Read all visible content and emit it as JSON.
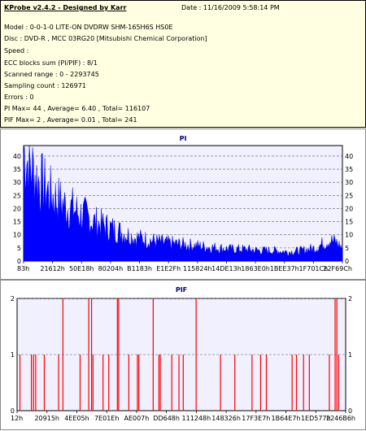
{
  "app": {
    "title": "KProbe v2.4.2 - Designed by Karr",
    "date": "Date : 11/16/2009 5:58:14 PM",
    "lines": [
      "Model : 0-0-1-0 LITE-ON DVDRW SHM-165H6S HS0E",
      "Disc : DVD-R , MCC 03RG20  [Mitsubishi Chemical Corporation]",
      "Speed :",
      "ECC blocks sum (PI/PIF) : 8/1",
      "Scanned range : 0 - 2293745",
      "Sampling count : 126971",
      "Errors : 0",
      "PI Max= 44 , Average= 6.40 , Total= 116107",
      "PIF Max= 2 , Average= 0.01 , Total= 241"
    ]
  },
  "colors": {
    "pi_fill": "#0000ff",
    "pif_line": "#ff0000",
    "plot_bg": "#f0f0ff",
    "grid": "#606060",
    "info_bg": "#ffffe1"
  },
  "chart_data": [
    {
      "type": "area",
      "title": "PI",
      "ylim": [
        0,
        44
      ],
      "yticks": [
        0,
        5,
        10,
        15,
        20,
        25,
        30,
        35,
        40
      ],
      "xlim": [
        0,
        2293745
      ],
      "xticks": [
        "83h",
        "21612h",
        "50E18h",
        "80204h",
        "B1183h",
        "E1E2Fh",
        "115824h",
        "14DE13h",
        "1863E0h",
        "1BEE37h",
        "1F701Ch",
        "22F69Ch"
      ],
      "grid": "dashed horizontal",
      "profile": [
        [
          0,
          42
        ],
        [
          30000,
          38
        ],
        [
          60000,
          35
        ],
        [
          100000,
          31
        ],
        [
          150000,
          28
        ],
        [
          200000,
          25
        ],
        [
          250000,
          23
        ],
        [
          300000,
          21
        ],
        [
          350000,
          20
        ],
        [
          400000,
          18
        ],
        [
          450000,
          17
        ],
        [
          500000,
          15
        ],
        [
          550000,
          14
        ],
        [
          600000,
          13
        ],
        [
          650000,
          12
        ],
        [
          700000,
          11
        ],
        [
          750000,
          10
        ],
        [
          800000,
          9
        ],
        [
          900000,
          8
        ],
        [
          1000000,
          7
        ],
        [
          1100000,
          6.5
        ],
        [
          1200000,
          6
        ],
        [
          1300000,
          5.5
        ],
        [
          1400000,
          5
        ],
        [
          1500000,
          4.5
        ],
        [
          1600000,
          4.5
        ],
        [
          1700000,
          4
        ],
        [
          1800000,
          4
        ],
        [
          1900000,
          3.5
        ],
        [
          2000000,
          4
        ],
        [
          2100000,
          5
        ],
        [
          2200000,
          8
        ],
        [
          2250000,
          7
        ],
        [
          2293745,
          5
        ]
      ]
    },
    {
      "type": "bar",
      "title": "PIF",
      "ylim": [
        0,
        2
      ],
      "yticks": [
        0,
        1,
        2
      ],
      "xlim": [
        0,
        2293745
      ],
      "xticks": [
        "12h",
        "20915h",
        "4EE05h",
        "7E01Eh",
        "AE007h",
        "DD648h",
        "111248h",
        "148326h",
        "17F3E7h",
        "1B64E7h",
        "1ED577h",
        "2246B6h"
      ],
      "grid": "dashed horizontal",
      "x": [
        20000,
        100000,
        115000,
        130000,
        190000,
        290000,
        320000,
        440000,
        500000,
        520000,
        530000,
        600000,
        640000,
        700000,
        709000,
        780000,
        840000,
        850000,
        950000,
        990000,
        1000000,
        1080000,
        1130000,
        1160000,
        1250000,
        1420000,
        1520000,
        1640000,
        1700000,
        1740000,
        1920000,
        1950000,
        2000000,
        2040000,
        2180000,
        2220000,
        2232000,
        2245000
      ],
      "values": [
        1,
        1,
        1,
        1,
        1,
        1,
        2,
        1,
        2,
        2,
        1,
        1,
        1,
        2,
        2,
        1,
        1,
        1,
        2,
        1,
        1,
        1,
        1,
        1,
        2,
        1,
        1,
        1,
        1,
        1,
        1,
        1,
        1,
        1,
        1,
        2,
        2,
        1
      ]
    }
  ]
}
